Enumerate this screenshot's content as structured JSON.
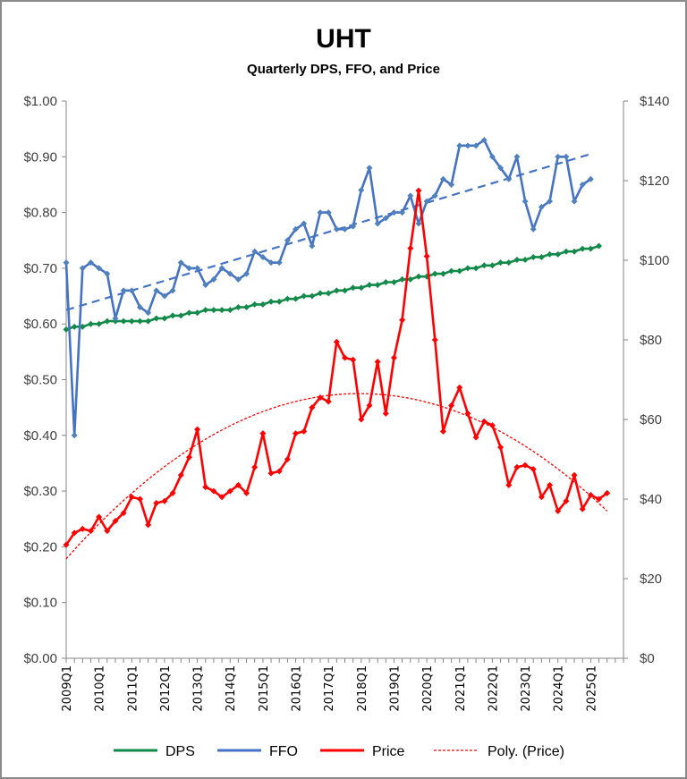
{
  "chart_data": {
    "type": "line",
    "title": "UHT",
    "subtitle": "Quarterly DPS, FFO, and Price",
    "xlabel": "",
    "ylabel_left": "",
    "ylabel_right": "",
    "x_start": "2009Q1",
    "x_tick_labels": [
      "2009Q1",
      "2010Q1",
      "2011Q1",
      "2012Q1",
      "2013Q1",
      "2014Q1",
      "2015Q1",
      "2016Q1",
      "2017Q1",
      "2018Q1",
      "2019Q1",
      "2020Q1",
      "2021Q1",
      "2022Q1",
      "2023Q1",
      "2024Q1",
      "2025Q1"
    ],
    "y_left": {
      "min": 0,
      "max": 1.0,
      "step": 0.1,
      "tick_labels": [
        "$0.00",
        "$0.10",
        "$0.20",
        "$0.30",
        "$0.40",
        "$0.50",
        "$0.60",
        "$0.70",
        "$0.80",
        "$0.90",
        "$1.00"
      ]
    },
    "y_right": {
      "min": 0,
      "max": 140,
      "step": 20,
      "tick_labels": [
        "$0",
        "$20",
        "$40",
        "$60",
        "$80",
        "$100",
        "$120",
        "$140"
      ]
    },
    "grid": false,
    "legend_position": "bottom",
    "series": [
      {
        "name": "DPS",
        "axis": "left",
        "color": "#138a4a",
        "values": [
          0.59,
          0.595,
          0.595,
          0.6,
          0.6,
          0.605,
          0.605,
          0.605,
          0.605,
          0.605,
          0.605,
          0.61,
          0.61,
          0.615,
          0.615,
          0.62,
          0.62,
          0.625,
          0.625,
          0.625,
          0.625,
          0.63,
          0.63,
          0.635,
          0.635,
          0.64,
          0.64,
          0.645,
          0.645,
          0.65,
          0.65,
          0.655,
          0.655,
          0.66,
          0.66,
          0.665,
          0.665,
          0.67,
          0.67,
          0.675,
          0.675,
          0.68,
          0.68,
          0.685,
          0.685,
          0.69,
          0.69,
          0.695,
          0.695,
          0.7,
          0.7,
          0.705,
          0.705,
          0.71,
          0.71,
          0.715,
          0.715,
          0.72,
          0.72,
          0.725,
          0.725,
          0.73,
          0.73,
          0.735,
          0.735,
          0.74
        ]
      },
      {
        "name": "FFO",
        "axis": "left",
        "color": "#4472c4",
        "values": [
          0.71,
          0.4,
          0.7,
          0.71,
          0.7,
          0.69,
          0.61,
          0.66,
          0.66,
          0.63,
          0.62,
          0.66,
          0.65,
          0.66,
          0.71,
          0.7,
          0.7,
          0.67,
          0.68,
          0.7,
          0.69,
          0.68,
          0.69,
          0.73,
          0.72,
          0.71,
          0.71,
          0.75,
          0.77,
          0.78,
          0.74,
          0.8,
          0.8,
          0.77,
          0.77,
          0.775,
          0.84,
          0.88,
          0.78,
          0.79,
          0.8,
          0.8,
          0.83,
          0.78,
          0.82,
          0.83,
          0.86,
          0.85,
          0.92,
          0.92,
          0.92,
          0.93,
          0.9,
          0.88,
          0.86,
          0.9,
          0.82,
          0.77,
          0.81,
          0.82,
          0.9,
          0.9,
          0.82,
          0.85,
          0.86
        ]
      },
      {
        "name": "Price",
        "axis": "right",
        "color": "#ff0000",
        "values": [
          28.5,
          31.5,
          32.5,
          32.0,
          35.5,
          32.0,
          34.5,
          36.5,
          40.5,
          40.0,
          33.5,
          39.0,
          39.5,
          41.5,
          46.0,
          50.5,
          57.5,
          43.0,
          42.0,
          40.5,
          42.0,
          43.5,
          41.5,
          48.0,
          56.5,
          46.5,
          47.0,
          50.0,
          56.5,
          57.0,
          63.0,
          65.5,
          64.5,
          79.5,
          75.5,
          75.0,
          60.0,
          63.5,
          74.5,
          61.5,
          75.5,
          85.0,
          103.0,
          117.5,
          101.0,
          80.0,
          57.0,
          63.5,
          68.0,
          61.5,
          55.5,
          59.5,
          58.5,
          53.0,
          43.5,
          48.0,
          48.5,
          47.5,
          40.5,
          43.5,
          37.0,
          39.5,
          46.0,
          37.5,
          41.0,
          40.0,
          41.5
        ]
      }
    ],
    "trendlines": [
      {
        "name": "Linear (FFO)",
        "series": "FFO",
        "kind": "linear",
        "start": 0.625,
        "end": 0.905,
        "color": "#4472c4",
        "in_legend": false
      },
      {
        "name": "Poly. (Price)",
        "series": "Price",
        "kind": "polynomial-2",
        "start": 25.0,
        "peak": 66.5,
        "end": 37.0,
        "color": "#ff0000",
        "in_legend": true
      }
    ],
    "legend": [
      "DPS",
      "FFO",
      "Price",
      "Poly. (Price)"
    ]
  }
}
